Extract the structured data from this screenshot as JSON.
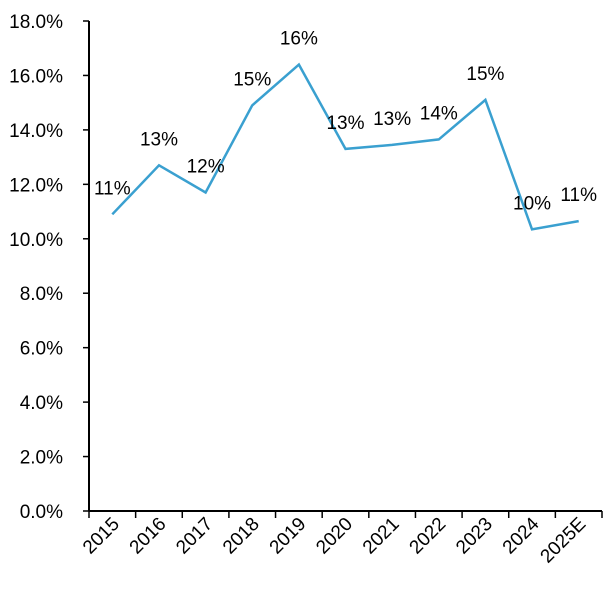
{
  "chart_data": {
    "type": "line",
    "title": "",
    "xlabel": "",
    "ylabel": "",
    "categories": [
      "2015",
      "2016",
      "2017",
      "2018",
      "2019",
      "2020",
      "2021",
      "2022",
      "2023",
      "2024",
      "2025E"
    ],
    "series": [
      {
        "values": [
          10.9,
          12.7,
          11.7,
          14.9,
          16.4,
          13.3,
          13.45,
          13.65,
          15.1,
          10.35,
          10.65
        ],
        "labels": [
          "11%",
          "13%",
          "12%",
          "15%",
          "16%",
          "13%",
          "13%",
          "14%",
          "15%",
          "10%",
          "11%"
        ],
        "color": "#3aa0d0"
      }
    ],
    "ylim": [
      0,
      18
    ],
    "yticks": [
      "0.0%",
      "2.0%",
      "4.0%",
      "6.0%",
      "8.0%",
      "10.0%",
      "12.0%",
      "14.0%",
      "16.0%",
      "18.0%"
    ],
    "grid": false,
    "legend": "none"
  }
}
